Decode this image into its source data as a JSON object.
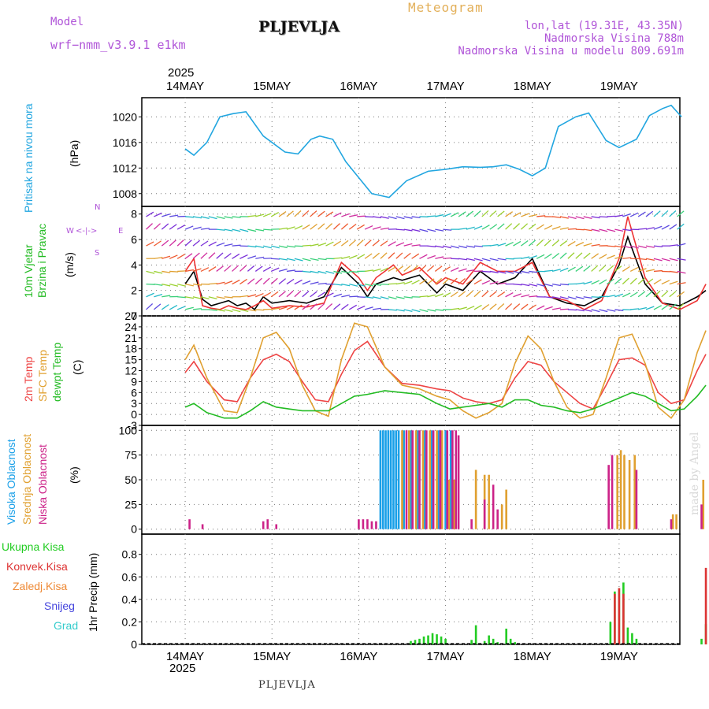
{
  "header": {
    "model_label": "Model",
    "model_name": "wrf−nmm_v3.9.1  e1km",
    "title": "PLJEVLJA",
    "subtitle": "Meteogram",
    "coords": "lon,lat (19.31E, 43.35N)",
    "elevation": "Nadmorska Visina 788m",
    "model_elevation": "Nadmorska Visina u modelu 809.691m"
  },
  "footer": {
    "station": "PLJEVLJA",
    "year": "2025"
  },
  "watermark": "made by Angel",
  "colors": {
    "pressure": "#22a6e0",
    "wind_speed": "#000000",
    "gust": "#ee3333",
    "temp_2m": "#ee4444",
    "temp_sfc": "#e0a030",
    "dewpoint": "#22bb22",
    "cloud_high": "#1aa0e8",
    "cloud_mid": "#e0a030",
    "cloud_low": "#cc2288",
    "precip_total": "#22cc22",
    "precip_conv": "#dd3333",
    "precip_frozen": "#ee8833",
    "snow": "#4444dd",
    "hail": "#33cccc"
  },
  "chart_data": [
    {
      "type": "line",
      "title": "",
      "ylabel": "Pritisak na nivou mora",
      "unit": "(hPa)",
      "ylim": [
        1006,
        1023
      ],
      "yticks": [
        1008,
        1012,
        1016,
        1020
      ],
      "x_unit": "day",
      "xlim": [
        0,
        6
      ],
      "xtick_labels": [
        "14MAY",
        "15MAY",
        "16MAY",
        "17MAY",
        "18MAY",
        "19MAY"
      ],
      "year_label": "2025",
      "grid": true,
      "series": [
        {
          "color_key": "pressure",
          "x": [
            0,
            0.1,
            0.25,
            0.4,
            0.55,
            0.7,
            0.9,
            1.0,
            1.15,
            1.3,
            1.45,
            1.55,
            1.7,
            1.85,
            2.0,
            2.15,
            2.35,
            2.55,
            2.8,
            3.0,
            3.2,
            3.4,
            3.55,
            3.7,
            3.85,
            4.0,
            4.15,
            4.3,
            4.5,
            4.65,
            4.85,
            5.0,
            5.2,
            5.35,
            5.5,
            5.6,
            5.72
          ],
          "values": [
            1015,
            1014,
            1016,
            1020,
            1020.5,
            1020.8,
            1017,
            1016,
            1014.5,
            1014.2,
            1016.5,
            1017,
            1016.5,
            1013,
            1010.5,
            1008,
            1007.4,
            1010,
            1011.5,
            1011.8,
            1012.2,
            1012.1,
            1012.2,
            1012.5,
            1011.8,
            1010.8,
            1012,
            1018.5,
            1020,
            1020.6,
            1016.3,
            1015.2,
            1016.5,
            1020.2,
            1021.3,
            1021.8,
            1020
          ]
        }
      ]
    },
    {
      "type": "line",
      "title": "",
      "ylabel": "10m Vjetar Brzina i Pravac",
      "unit": "(m/s)",
      "direction_key": [
        "N",
        "W",
        "E",
        "S"
      ],
      "ylim": [
        0,
        8.6
      ],
      "yticks": [
        0,
        2,
        4,
        6,
        8
      ],
      "xlim": [
        0,
        6
      ],
      "grid": true,
      "series": [
        {
          "color_key": "wind_speed",
          "x": [
            0,
            0.1,
            0.2,
            0.3,
            0.4,
            0.5,
            0.6,
            0.7,
            0.8,
            0.9,
            1.0,
            1.2,
            1.4,
            1.6,
            1.8,
            2.0,
            2.1,
            2.2,
            2.4,
            2.5,
            2.7,
            2.9,
            3.0,
            3.2,
            3.4,
            3.6,
            3.8,
            4.0,
            4.2,
            4.4,
            4.6,
            4.8,
            5.0,
            5.1,
            5.3,
            5.5,
            5.7,
            5.9,
            6.0
          ],
          "values": [
            2.5,
            3.5,
            1.3,
            0.8,
            1.0,
            1.2,
            0.8,
            1.0,
            0.5,
            1.5,
            1.0,
            1.2,
            1.0,
            1.5,
            3.8,
            2.5,
            1.5,
            2.5,
            3.0,
            2.8,
            3.2,
            1.8,
            2.5,
            2.0,
            3.5,
            2.5,
            3.0,
            4.5,
            1.5,
            1.0,
            0.8,
            1.5,
            4.0,
            6.2,
            2.5,
            1.0,
            0.8,
            1.5,
            2.0
          ]
        },
        {
          "color_key": "gust",
          "x": [
            0,
            0.1,
            0.2,
            0.3,
            0.4,
            0.5,
            0.6,
            0.7,
            0.8,
            0.9,
            1.0,
            1.2,
            1.4,
            1.6,
            1.8,
            2.0,
            2.1,
            2.2,
            2.4,
            2.5,
            2.7,
            2.9,
            3.0,
            3.2,
            3.4,
            3.6,
            3.8,
            4.0,
            4.2,
            4.4,
            4.6,
            4.8,
            5.0,
            5.1,
            5.3,
            5.5,
            5.7,
            5.9,
            6.0
          ],
          "values": [
            3.5,
            4.5,
            0.8,
            0.6,
            0.5,
            0.8,
            0.6,
            0.5,
            0.8,
            1.2,
            0.6,
            0.8,
            0.7,
            1.0,
            4.2,
            3.0,
            2.0,
            3.0,
            4.0,
            3.2,
            3.8,
            2.5,
            3.0,
            2.5,
            4.2,
            3.5,
            3.5,
            4.2,
            1.5,
            1.2,
            0.5,
            1.2,
            4.5,
            7.8,
            3.0,
            1.0,
            0.5,
            1.2,
            2.5
          ]
        }
      ],
      "barb_rows": [
        0.5,
        1.5,
        2.5,
        3.5,
        4.5,
        5.5,
        6.8,
        7.8
      ]
    },
    {
      "type": "line",
      "title": "",
      "ylabel_lines": [
        "2m Temp",
        "SFC Temp",
        "dewpt Temp"
      ],
      "unit": "(C)",
      "ylim": [
        -3,
        27
      ],
      "yticks": [
        -3,
        0,
        3,
        6,
        9,
        12,
        15,
        18,
        21,
        24,
        27
      ],
      "xlim": [
        0,
        6
      ],
      "grid": true,
      "series": [
        {
          "color_key": "temp_2m",
          "x": [
            0,
            0.1,
            0.25,
            0.45,
            0.6,
            0.75,
            0.9,
            1.05,
            1.2,
            1.35,
            1.5,
            1.65,
            1.8,
            1.95,
            2.1,
            2.3,
            2.5,
            2.7,
            2.9,
            3.05,
            3.2,
            3.35,
            3.5,
            3.65,
            3.8,
            3.95,
            4.1,
            4.25,
            4.4,
            4.55,
            4.7,
            4.85,
            5.0,
            5.15,
            5.3,
            5.45,
            5.6,
            5.75,
            5.9,
            6.0
          ],
          "values": [
            11.5,
            14.5,
            9,
            4,
            3.5,
            10,
            15,
            16.5,
            14.5,
            9,
            4,
            3.5,
            11,
            17.5,
            20,
            13,
            8.5,
            8,
            7,
            6.5,
            4.5,
            3.5,
            3,
            4,
            10,
            14.5,
            13.5,
            9,
            6,
            3,
            1.5,
            8,
            15,
            15.5,
            13.5,
            6,
            3,
            4,
            12,
            16.5
          ]
        },
        {
          "color_key": "temp_sfc",
          "x": [
            0,
            0.1,
            0.25,
            0.45,
            0.6,
            0.75,
            0.9,
            1.05,
            1.2,
            1.35,
            1.5,
            1.65,
            1.8,
            1.95,
            2.1,
            2.3,
            2.5,
            2.7,
            2.9,
            3.05,
            3.2,
            3.35,
            3.5,
            3.65,
            3.8,
            3.95,
            4.1,
            4.25,
            4.4,
            4.55,
            4.7,
            4.85,
            5.0,
            5.15,
            5.3,
            5.45,
            5.6,
            5.75,
            5.9,
            6.0
          ],
          "values": [
            15,
            19,
            10,
            1,
            0.5,
            10,
            21,
            22.5,
            18,
            8,
            1,
            -0.5,
            15,
            25,
            24,
            13,
            8,
            7,
            5,
            4,
            1,
            -1,
            0.5,
            3,
            14,
            21.5,
            18,
            9,
            2,
            -1,
            0,
            10,
            21,
            22,
            14,
            2,
            -1,
            4,
            17,
            23
          ]
        },
        {
          "color_key": "dewpoint",
          "x": [
            0,
            0.1,
            0.25,
            0.45,
            0.6,
            0.75,
            0.9,
            1.05,
            1.2,
            1.35,
            1.5,
            1.65,
            1.8,
            1.95,
            2.1,
            2.3,
            2.5,
            2.7,
            2.9,
            3.05,
            3.2,
            3.35,
            3.5,
            3.65,
            3.8,
            3.95,
            4.1,
            4.25,
            4.4,
            4.55,
            4.7,
            4.85,
            5.0,
            5.15,
            5.3,
            5.45,
            5.6,
            5.75,
            5.9,
            6.0
          ],
          "values": [
            2,
            3,
            0.5,
            -1,
            -1,
            1,
            3.5,
            2,
            1.5,
            1,
            1,
            1,
            3,
            5,
            5.5,
            6.5,
            6,
            5.5,
            3,
            1.5,
            2,
            2.5,
            3,
            2,
            4,
            4,
            2.5,
            2,
            1,
            0.5,
            1.5,
            3,
            4.5,
            6,
            5,
            3,
            1,
            1.5,
            5,
            8
          ]
        }
      ]
    },
    {
      "type": "bar",
      "title": "",
      "ylabel_lines": [
        "Visoka Oblacnost",
        "Srednja Oblacnost",
        "Niska Oblacnost"
      ],
      "unit": "(%)",
      "ylim": [
        -5,
        105
      ],
      "yticks": [
        0,
        25,
        50,
        75,
        100
      ],
      "xlim": [
        0,
        6
      ],
      "grid": true,
      "series": [
        {
          "color_key": "cloud_high",
          "x": [
            2.25,
            2.28,
            2.31,
            2.34,
            2.37,
            2.4,
            2.43,
            2.46,
            2.52,
            2.6,
            2.68,
            2.76,
            2.84,
            2.92,
            3.0,
            3.06
          ],
          "values": [
            100,
            100,
            100,
            100,
            100,
            100,
            100,
            100,
            100,
            100,
            100,
            100,
            100,
            100,
            100,
            100
          ]
        },
        {
          "color_key": "cloud_mid",
          "x": [
            2.5,
            2.58,
            2.66,
            2.74,
            2.82,
            2.9,
            2.96,
            3.04,
            3.1,
            3.35,
            3.45,
            3.5,
            3.65,
            3.7,
            4.98,
            5.02,
            5.06,
            5.12,
            5.18,
            5.62,
            5.66,
            5.97
          ],
          "values": [
            100,
            100,
            100,
            100,
            100,
            100,
            100,
            50,
            50,
            60,
            55,
            55,
            25,
            40,
            75,
            80,
            75,
            70,
            75,
            15,
            15,
            50
          ]
        },
        {
          "color_key": "cloud_low",
          "x": [
            0.05,
            0.2,
            0.9,
            0.95,
            1.05,
            2.0,
            2.05,
            2.1,
            2.15,
            2.2,
            2.55,
            2.62,
            2.7,
            2.78,
            2.86,
            2.94,
            3.02,
            3.08,
            3.12,
            3.15,
            3.3,
            3.45,
            3.55,
            3.6,
            4.88,
            4.92,
            5.2,
            5.6,
            5.95
          ],
          "values": [
            10,
            5,
            8,
            10,
            5,
            10,
            10,
            10,
            8,
            8,
            100,
            100,
            100,
            100,
            100,
            100,
            100,
            100,
            100,
            95,
            10,
            30,
            45,
            20,
            65,
            75,
            60,
            10,
            25
          ]
        }
      ]
    },
    {
      "type": "bar",
      "title": "",
      "legend": [
        "Ukupna Kisa",
        "Konvek.Kisa",
        "Zaledj.Kisa",
        "Snijeg",
        "Grad"
      ],
      "ylabel": "1hr Precip (mm)",
      "ylim": [
        0,
        0.98
      ],
      "yticks": [
        0,
        0.2,
        0.4,
        0.6,
        0.8
      ],
      "xlim": [
        0,
        6
      ],
      "grid": true,
      "series": [
        {
          "color_key": "precip_total",
          "x": [
            2.6,
            2.65,
            2.7,
            2.75,
            2.8,
            2.85,
            2.9,
            2.95,
            3.0,
            3.3,
            3.35,
            3.45,
            3.5,
            3.55,
            3.6,
            3.7,
            3.75,
            3.8,
            4.9,
            4.95,
            5.0,
            5.05,
            5.1,
            5.15,
            5.2,
            5.95,
            6.0
          ],
          "values": [
            0.03,
            0.04,
            0.05,
            0.07,
            0.08,
            0.1,
            0.09,
            0.07,
            0.05,
            0.04,
            0.17,
            0.03,
            0.08,
            0.05,
            0.02,
            0.14,
            0.05,
            0.02,
            0.2,
            0.47,
            0.5,
            0.55,
            0.15,
            0.1,
            0.05,
            0.05,
            0.18
          ]
        },
        {
          "color_key": "precip_conv",
          "x": [
            4.95,
            5.0,
            5.05,
            6.0
          ],
          "values": [
            0.45,
            0.5,
            0.45,
            0.68
          ]
        },
        {
          "color_key": "precip_frozen",
          "x": [],
          "values": []
        }
      ]
    }
  ]
}
